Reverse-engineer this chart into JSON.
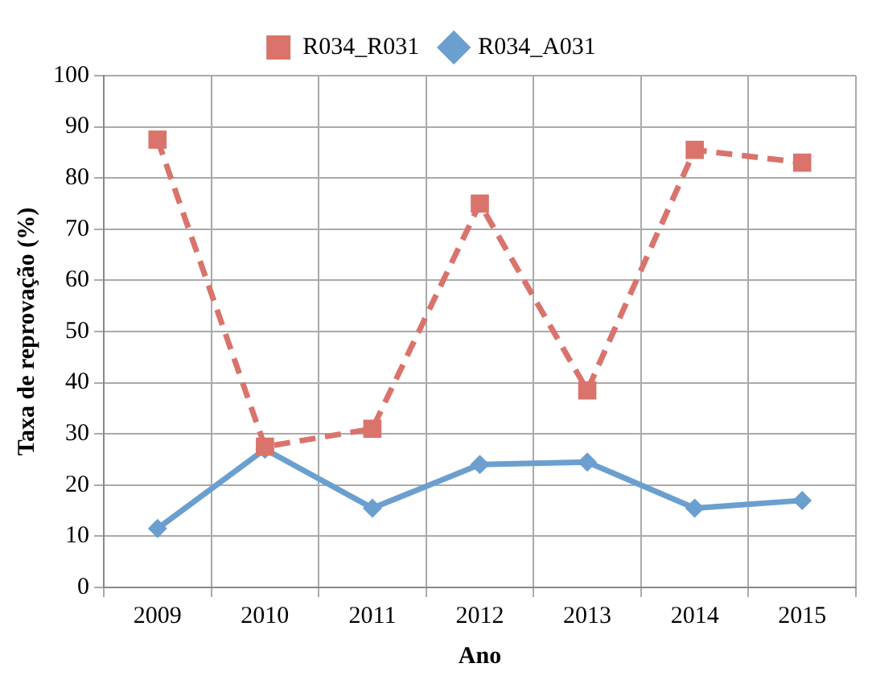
{
  "chart_data": {
    "type": "line",
    "xlabel": "Ano",
    "ylabel": "Taxa de reprovação (%)",
    "categories": [
      "2009",
      "2010",
      "2011",
      "2012",
      "2013",
      "2014",
      "2015"
    ],
    "series": [
      {
        "name": "R034_A031",
        "color": "#6a9fcf",
        "marker": "diamond",
        "line_style": "solid",
        "values": [
          11.5,
          27,
          15.5,
          24,
          24.5,
          15.5,
          17
        ]
      },
      {
        "name": "R034_R031",
        "color": "#d9736c",
        "marker": "square",
        "line_style": "dashed",
        "values": [
          87.5,
          27.5,
          31,
          75,
          38.5,
          85.5,
          83
        ]
      }
    ],
    "ylim": [
      0,
      100
    ],
    "yticks": [
      0,
      10,
      20,
      30,
      40,
      50,
      60,
      70,
      80,
      90,
      100
    ],
    "grid": true,
    "legend": "top"
  }
}
